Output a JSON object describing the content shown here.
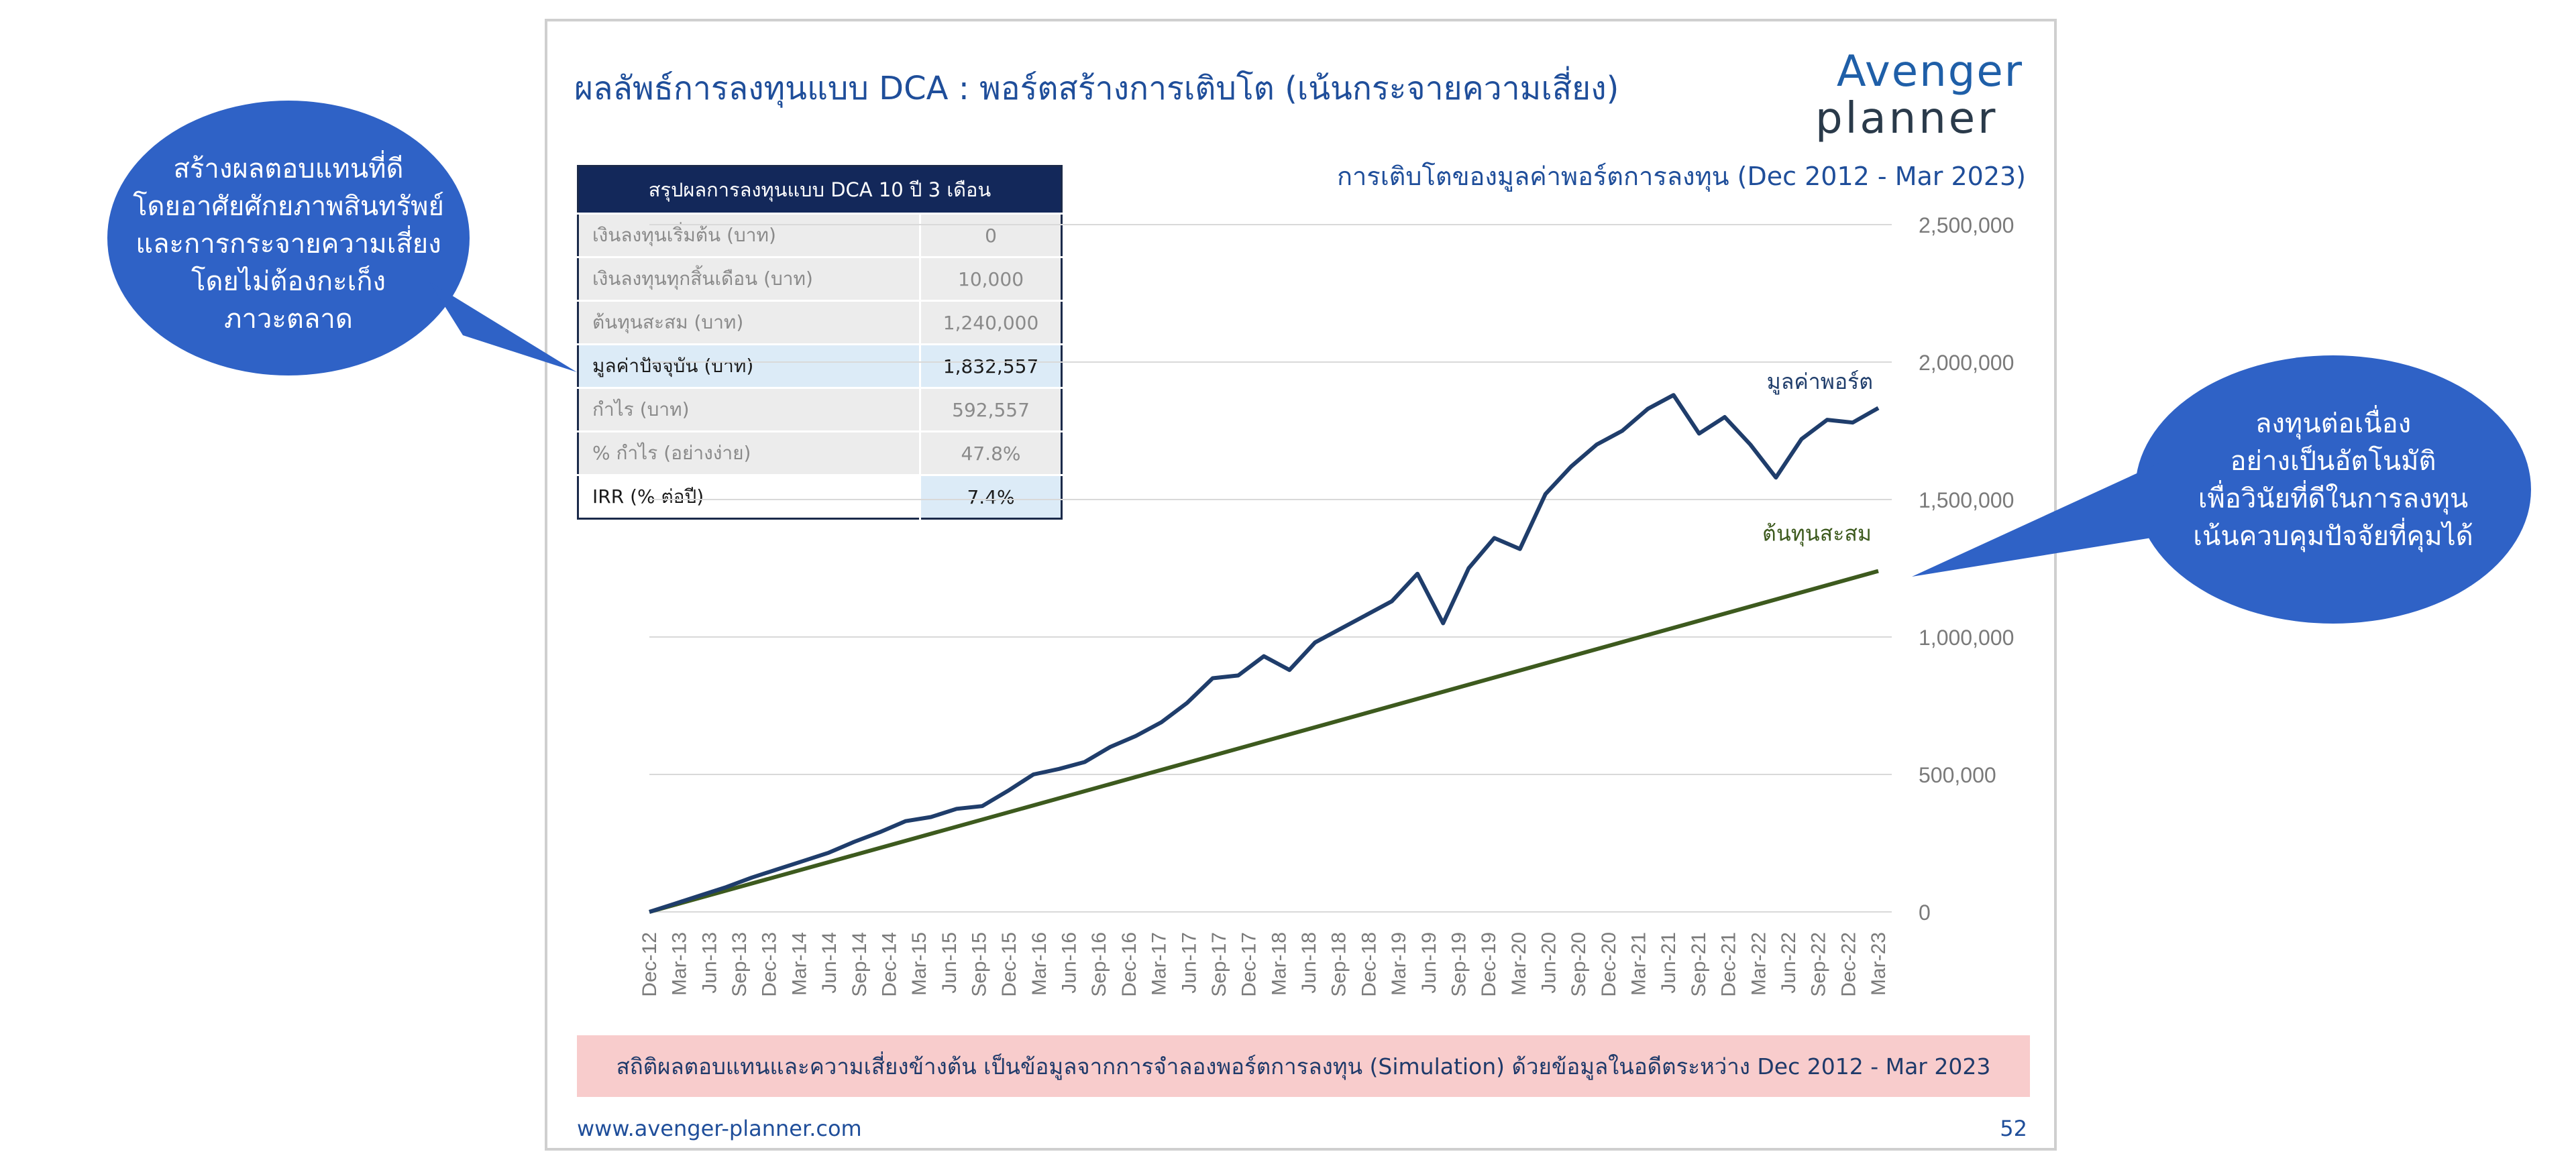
{
  "slide": {
    "title": "ผลลัพธ์การลงทุนแบบ DCA : พอร์ตสร้างการเติบโต (เน้นกระจายความเสี่ยง)",
    "logo_line1": "Avenger",
    "logo_line2": "planner",
    "footer_url": "www.avenger-planner.com",
    "page_number": "52",
    "disclaimer": "สถิติผลตอบแทนและความเสี่ยงข้างต้น เป็นข้อมูลจากการจำลองพอร์ตการลงทุน (Simulation) ด้วยข้อมูลในอดีตระหว่าง Dec 2012 - Mar 2023"
  },
  "summary_table": {
    "header": "สรุปผลการลงทุนแบบ DCA 10 ปี 3 เดือน",
    "rows": [
      {
        "label": "เงินลงทุนเริ่มต้น (บาท)",
        "value": "0"
      },
      {
        "label": "เงินลงทุนทุกสิ้นเดือน (บาท)",
        "value": "10,000"
      },
      {
        "label": "ต้นทุนสะสม (บาท)",
        "value": "1,240,000"
      },
      {
        "label": "มูลค่าปัจจุบัน (บาท)",
        "value": "1,832,557"
      },
      {
        "label": "กำไร (บาท)",
        "value": "592,557"
      },
      {
        "label": "% กำไร (อย่างง่าย)",
        "value": "47.8%"
      },
      {
        "label": "IRR (% ต่อปี)",
        "value": "7.4%"
      }
    ]
  },
  "callouts": {
    "left": [
      "สร้างผลตอบแทนที่ดี",
      "โดยอาศัยศักยภาพสินทรัพย์",
      "และการกระจายความเสี่ยง",
      "โดยไม่ต้องกะเก็ง",
      "ภาวะตลาด"
    ],
    "right": [
      "ลงทุนต่อเนื่อง",
      "อย่างเป็นอัตโนมัติ",
      "เพื่อวินัยที่ดีในการลงทุน",
      "เน้นควบคุมปัจจัยที่คุมได้"
    ]
  },
  "colors": {
    "title_blue": "#1f4e9a",
    "portfolio_line": "#1f3d6b",
    "cost_line": "#3d5a1e",
    "bubble_fill": "#2f62c6",
    "disclaimer_bg": "#f8cccc",
    "table_header": "#13285a"
  },
  "chart_data": {
    "type": "line",
    "title": "การเติบโตของมูลค่าพอร์ตการลงทุน (Dec 2012 - Mar 2023)",
    "ylim": [
      0,
      2500000
    ],
    "y_ticks": [
      "0",
      "500,000",
      "1,000,000",
      "1,500,000",
      "2,000,000",
      "2,500,000"
    ],
    "y_tick_values": [
      0,
      500000,
      1000000,
      1500000,
      2000000,
      2500000
    ],
    "grid": true,
    "x_ticks": [
      "Dec-12",
      "Mar-13",
      "Jun-13",
      "Sep-13",
      "Dec-13",
      "Mar-14",
      "Jun-14",
      "Sep-14",
      "Dec-14",
      "Mar-15",
      "Jun-15",
      "Sep-15",
      "Dec-15",
      "Mar-16",
      "Jun-16",
      "Sep-16",
      "Dec-16",
      "Mar-17",
      "Jun-17",
      "Sep-17",
      "Dec-17",
      "Mar-18",
      "Jun-18",
      "Sep-18",
      "Dec-18",
      "Mar-19",
      "Jun-19",
      "Sep-19",
      "Dec-19",
      "Mar-20",
      "Jun-20",
      "Sep-20",
      "Dec-20",
      "Mar-21",
      "Jun-21",
      "Sep-21",
      "Dec-21",
      "Mar-22",
      "Jun-22",
      "Sep-22",
      "Dec-22",
      "Mar-23"
    ],
    "series": [
      {
        "name": "มูลค่าพอร์ต",
        "values": [
          0,
          30000,
          60000,
          90000,
          125000,
          155000,
          185000,
          215000,
          255000,
          290000,
          330000,
          345000,
          375000,
          385000,
          440000,
          500000,
          520000,
          545000,
          600000,
          640000,
          690000,
          760000,
          850000,
          860000,
          930000,
          880000,
          980000,
          1030000,
          1080000,
          1130000,
          1230000,
          1050000,
          1250000,
          1360000,
          1320000,
          1520000,
          1620000,
          1700000,
          1750000,
          1830000,
          1880000,
          1740000,
          1800000,
          1700000,
          1580000,
          1720000,
          1790000,
          1780000,
          1833000
        ]
      },
      {
        "name": "ต้นทุนสะสม",
        "values": [
          0,
          1240000
        ]
      }
    ]
  }
}
